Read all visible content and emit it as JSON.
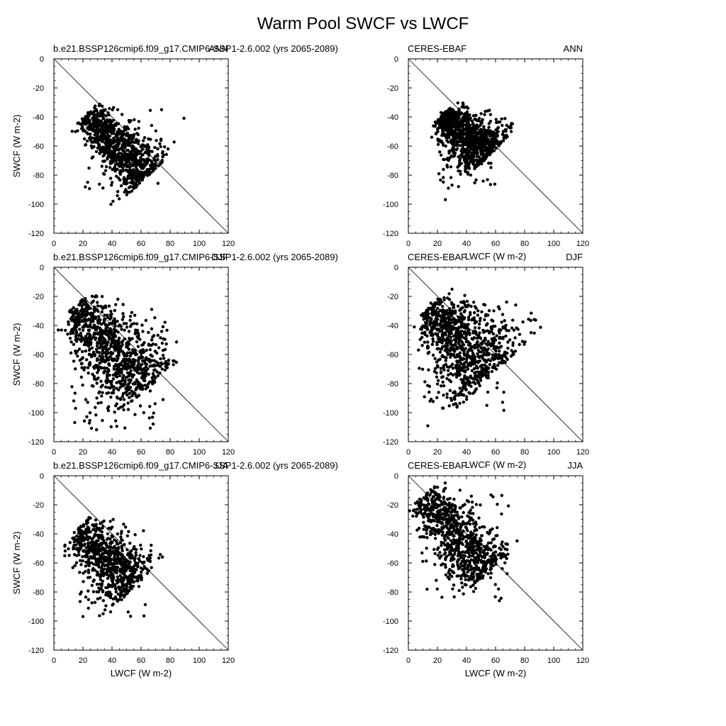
{
  "title": "Warm Pool SWCF vs LWCF",
  "chart_data": [
    {
      "type": "scatter",
      "position": "row1-left",
      "left_label": "b.e21.BSSP126cmip6.f09_g17.CMIP6-SSP1-2.6.002 (yrs 2065-2089)",
      "right_label": "ANN",
      "xlabel": "",
      "ylabel": "SWCF (W m-2)",
      "xlim": [
        0,
        120
      ],
      "ylim": [
        -120,
        0
      ],
      "x_ticks": [
        "0",
        "20",
        "40",
        "60",
        "80",
        "100",
        "120"
      ],
      "y_ticks": [
        "0",
        "-20",
        "-40",
        "-60",
        "-80",
        "-100",
        "-120"
      ],
      "reference_line": "y = -x",
      "cloud": {
        "n": 900,
        "seed": 11,
        "x0": 19,
        "y0": -33,
        "len_min": 6,
        "len_max": 66,
        "slope": 1.05,
        "spread": 5,
        "spread_growth": 0.09,
        "outliers": 25
      }
    },
    {
      "type": "scatter",
      "position": "row1-right",
      "left_label": "CERES-EBAF",
      "right_label": "ANN",
      "xlabel": "LWCF (W m-2)",
      "ylabel": "",
      "xlim": [
        0,
        120
      ],
      "ylim": [
        -120,
        0
      ],
      "x_ticks": [
        "0",
        "20",
        "40",
        "60",
        "80",
        "100",
        "120"
      ],
      "y_ticks": [
        "0",
        "-20",
        "-40",
        "-60",
        "-80",
        "-100",
        "-120"
      ],
      "reference_line": "y = -x",
      "cloud": {
        "n": 1000,
        "seed": 23,
        "x0": 21,
        "y0": -35,
        "len_min": 4,
        "len_max": 47,
        "slope": 0.95,
        "spread": 4,
        "spread_growth": 0.18,
        "outliers": 40
      }
    },
    {
      "type": "scatter",
      "position": "row2-left",
      "left_label": "b.e21.BSSP126cmip6.f09_g17.CMIP6-SSP1-2.6.002 (yrs 2065-2089)",
      "right_label": "DJF",
      "xlabel": "",
      "ylabel": "SWCF (W m-2)",
      "xlim": [
        0,
        120
      ],
      "ylim": [
        -120,
        0
      ],
      "x_ticks": [
        "0",
        "20",
        "40",
        "60",
        "80",
        "100",
        "120"
      ],
      "y_ticks": [
        "0",
        "-20",
        "-40",
        "-60",
        "-80",
        "-100",
        "-120"
      ],
      "reference_line": "y = -x",
      "cloud": {
        "n": 1000,
        "seed": 37,
        "x0": 11,
        "y0": -24,
        "len_min": 4,
        "len_max": 80,
        "slope": 1.1,
        "spread": 6,
        "spread_growth": 0.12,
        "outliers": 120
      }
    },
    {
      "type": "scatter",
      "position": "row2-right",
      "left_label": "CERES-EBAF",
      "right_label": "DJF",
      "xlabel": "LWCF (W m-2)",
      "ylabel": "",
      "xlim": [
        0,
        120
      ],
      "ylim": [
        -120,
        0
      ],
      "x_ticks": [
        "0",
        "20",
        "40",
        "60",
        "80",
        "100",
        "120"
      ],
      "y_ticks": [
        "0",
        "-20",
        "-40",
        "-60",
        "-80",
        "-100",
        "-120"
      ],
      "reference_line": "y = -x",
      "cloud": {
        "n": 1000,
        "seed": 53,
        "x0": 10,
        "y0": -23,
        "len_min": 6,
        "len_max": 70,
        "slope": 1.05,
        "spread": 6,
        "spread_growth": 0.2,
        "outliers": 70
      }
    },
    {
      "type": "scatter",
      "position": "row3-left",
      "left_label": "b.e21.BSSP126cmip6.f09_g17.CMIP6-SSP1-2.6.002 (yrs 2065-2089)",
      "right_label": "JJA",
      "xlabel": "LWCF (W m-2)",
      "ylabel": "SWCF (W m-2)",
      "xlim": [
        0,
        120
      ],
      "ylim": [
        -120,
        0
      ],
      "x_ticks": [
        "0",
        "20",
        "40",
        "60",
        "80",
        "100",
        "120"
      ],
      "y_ticks": [
        "0",
        "-20",
        "-40",
        "-60",
        "-80",
        "-100",
        "-120"
      ],
      "reference_line": "y = -x",
      "cloud": {
        "n": 800,
        "seed": 71,
        "x0": 15,
        "y0": -35,
        "len_min": 2,
        "len_max": 58,
        "slope": 1.0,
        "spread": 6,
        "spread_growth": 0.1,
        "outliers": 60
      }
    },
    {
      "type": "scatter",
      "position": "row3-right",
      "left_label": "CERES-EBAF",
      "right_label": "JJA",
      "xlabel": "LWCF (W m-2)",
      "ylabel": "",
      "xlim": [
        0,
        120
      ],
      "ylim": [
        -120,
        0
      ],
      "x_ticks": [
        "0",
        "20",
        "40",
        "60",
        "80",
        "100",
        "120"
      ],
      "y_ticks": [
        "0",
        "-20",
        "-40",
        "-60",
        "-80",
        "-100",
        "-120"
      ],
      "reference_line": "y = -x",
      "cloud": {
        "n": 900,
        "seed": 89,
        "x0": 9,
        "y0": -12,
        "len_min": 2,
        "len_max": 72,
        "slope": 1.2,
        "spread": 6,
        "spread_growth": 0.08,
        "outliers": 60
      }
    }
  ]
}
